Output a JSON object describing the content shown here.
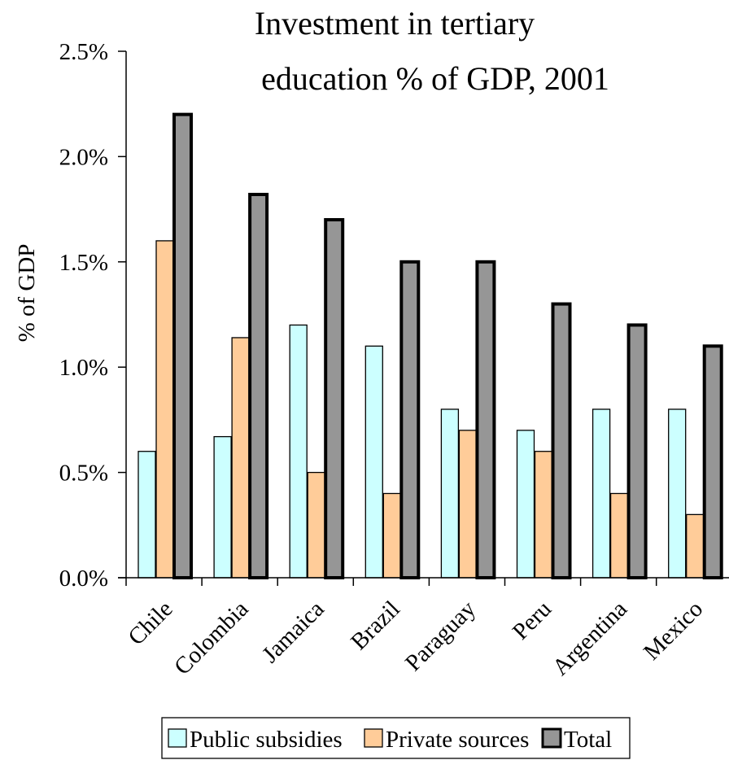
{
  "chart_data": {
    "type": "bar",
    "title": [
      "Investment in  tertiary",
      "education % of GDP, 2001"
    ],
    "ylabel": "% of GDP",
    "xlabel": "",
    "ylim": [
      0,
      0.025
    ],
    "yticks": [
      "0.0%",
      "0.5%",
      "1.0%",
      "1.5%",
      "2.0%",
      "2.5%"
    ],
    "ytick_values": [
      0,
      0.005,
      0.01,
      0.015,
      0.02,
      0.025
    ],
    "grid": false,
    "legend_position": "bottom",
    "categories": [
      "Chile",
      "Colombia",
      "Jamaica",
      "Brazil",
      "Paraguay",
      "Peru",
      "Argentina",
      "Mexico"
    ],
    "series": [
      {
        "name": "Public subsidies",
        "color": "#ccffff",
        "values": [
          0.006,
          0.0067,
          0.012,
          0.011,
          0.008,
          0.007,
          0.008,
          0.008
        ]
      },
      {
        "name": "Private sources",
        "color": "#ffcc99",
        "values": [
          0.016,
          0.0114,
          0.005,
          0.004,
          0.007,
          0.006,
          0.004,
          0.003
        ]
      },
      {
        "name": "Total",
        "color": "#969696",
        "values": [
          0.022,
          0.0182,
          0.017,
          0.015,
          0.015,
          0.013,
          0.012,
          0.011
        ]
      }
    ]
  }
}
